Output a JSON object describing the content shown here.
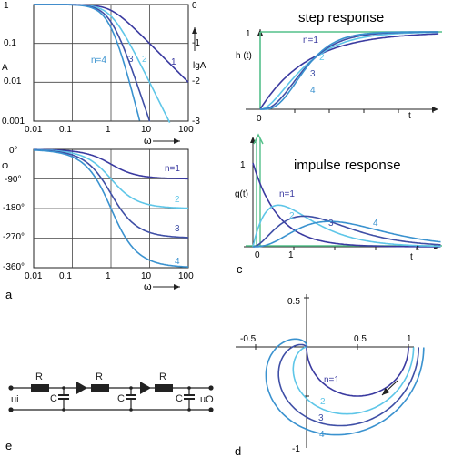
{
  "panel_labels": {
    "a": "a",
    "c": "c",
    "d": "d",
    "e": "e"
  },
  "colors": {
    "n1": "#3a3aa0",
    "n2": "#5ec6e8",
    "n3": "#3f4fa6",
    "n4": "#3a92cf",
    "green": "#54c08a",
    "axis": "#222222",
    "grid": "#444444"
  },
  "texts": {
    "step_title": "step response",
    "impulse_title": "impulse response",
    "h_label": "h (t)",
    "g_label": "g(t)",
    "t_label": "t",
    "A_label": "A",
    "lgA_label": "lgA",
    "phi_label": "φ",
    "omega_label": "ω",
    "u_in": "ui",
    "u_out": "uO",
    "R": "R",
    "C": "C"
  },
  "chart_data": [
    {
      "id": "amplitude",
      "type": "line",
      "scale": "log-log",
      "x_ticks": [
        "0.01",
        "0.1",
        "1",
        "10",
        "100"
      ],
      "y_ticks_left": [
        "1",
        "0.1",
        "0.01",
        "0.001"
      ],
      "y_ticks_right": [
        "0",
        "-1",
        "-2",
        "-3"
      ],
      "xlabel": "ω",
      "ylabel": "A",
      "ylabel_right": "lgA",
      "series": [
        {
          "name": "1",
          "label": "1"
        },
        {
          "name": "2",
          "label": "2"
        },
        {
          "name": "3",
          "label": "3"
        },
        {
          "name": "4",
          "label": "n=4"
        }
      ]
    },
    {
      "id": "phase",
      "type": "line",
      "x_ticks": [
        "0.01",
        "0.1",
        "1",
        "10",
        "100"
      ],
      "y_ticks": [
        "0°",
        "-90°",
        "-180°",
        "-270°",
        "-360°"
      ],
      "xlabel": "ω",
      "ylabel": "φ",
      "series": [
        {
          "name": "1",
          "label": "n=1"
        },
        {
          "name": "2",
          "label": "2"
        },
        {
          "name": "3",
          "label": "3"
        },
        {
          "name": "4",
          "label": "4"
        }
      ]
    },
    {
      "id": "step",
      "type": "line",
      "title": "step response",
      "ylabel": "h (t)",
      "xlabel": "t",
      "y_ticks": [
        "1"
      ],
      "x_ticks": [
        "0"
      ],
      "series": [
        {
          "name": "1",
          "label": "n=1"
        },
        {
          "name": "2",
          "label": "2"
        },
        {
          "name": "3",
          "label": "3"
        },
        {
          "name": "4",
          "label": "4"
        }
      ]
    },
    {
      "id": "impulse",
      "type": "line",
      "title": "impulse response",
      "ylabel": "g(t)",
      "xlabel": "t",
      "y_ticks": [
        "1"
      ],
      "x_ticks": [
        "0",
        "1"
      ],
      "series": [
        {
          "name": "1",
          "label": "n=1"
        },
        {
          "name": "2",
          "label": "2"
        },
        {
          "name": "3",
          "label": "3"
        },
        {
          "name": "4",
          "label": "4"
        }
      ]
    },
    {
      "id": "nyquist",
      "type": "line",
      "x_ticks": [
        "-0.5",
        "0.5",
        "1"
      ],
      "y_ticks": [
        "0.5",
        "-1"
      ],
      "series": [
        {
          "name": "1",
          "label": "n=1"
        },
        {
          "name": "2",
          "label": "2"
        },
        {
          "name": "3",
          "label": "3"
        },
        {
          "name": "4",
          "label": "4"
        }
      ]
    }
  ]
}
